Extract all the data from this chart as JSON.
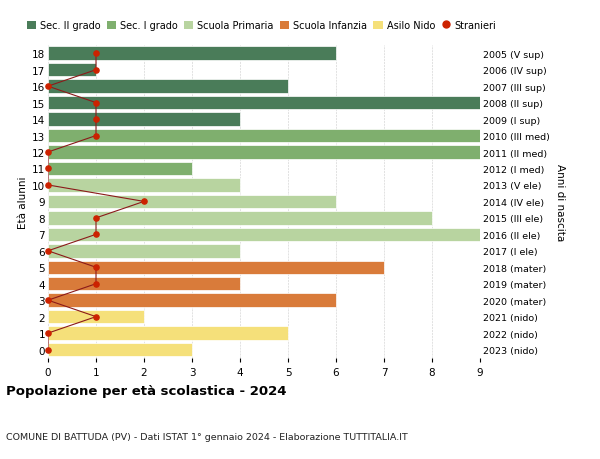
{
  "ages": [
    18,
    17,
    16,
    15,
    14,
    13,
    12,
    11,
    10,
    9,
    8,
    7,
    6,
    5,
    4,
    3,
    2,
    1,
    0
  ],
  "years": [
    "2005 (V sup)",
    "2006 (IV sup)",
    "2007 (III sup)",
    "2008 (II sup)",
    "2009 (I sup)",
    "2010 (III med)",
    "2011 (II med)",
    "2012 (I med)",
    "2013 (V ele)",
    "2014 (IV ele)",
    "2015 (III ele)",
    "2016 (II ele)",
    "2017 (I ele)",
    "2018 (mater)",
    "2019 (mater)",
    "2020 (mater)",
    "2021 (nido)",
    "2022 (nido)",
    "2023 (nido)"
  ],
  "values": [
    6,
    1,
    5,
    9,
    4,
    9,
    9,
    3,
    4,
    6,
    8,
    9,
    4,
    7,
    4,
    6,
    2,
    5,
    3
  ],
  "stranieri": [
    1,
    1,
    0,
    1,
    1,
    1,
    0,
    0,
    0,
    2,
    1,
    1,
    0,
    1,
    1,
    0,
    1,
    0,
    0
  ],
  "category_colors": [
    "#4a7c59",
    "#4a7c59",
    "#4a7c59",
    "#4a7c59",
    "#4a7c59",
    "#7faf6e",
    "#7faf6e",
    "#7faf6e",
    "#b8d4a0",
    "#b8d4a0",
    "#b8d4a0",
    "#b8d4a0",
    "#b8d4a0",
    "#d97b3a",
    "#d97b3a",
    "#d97b3a",
    "#f5e07a",
    "#f5e07a",
    "#f5e07a"
  ],
  "stranieri_line_color": "#8b1a1a",
  "stranieri_dot_color": "#cc2200",
  "title": "Popolazione per età scolastica - 2024",
  "subtitle": "COMUNE DI BATTUDA (PV) - Dati ISTAT 1° gennaio 2024 - Elaborazione TUTTITALIA.IT",
  "ylabel_left": "Età alunni",
  "ylabel_right": "Anni di nascita",
  "legend_labels": [
    "Sec. II grado",
    "Sec. I grado",
    "Scuola Primaria",
    "Scuola Infanzia",
    "Asilo Nido",
    "Stranieri"
  ],
  "legend_colors": [
    "#4a7c59",
    "#7faf6e",
    "#b8d4a0",
    "#d97b3a",
    "#f5e07a",
    "#cc2200"
  ],
  "bar_height": 0.82,
  "xlim": [
    0,
    9
  ],
  "ylim": [
    -0.5,
    18.5
  ]
}
